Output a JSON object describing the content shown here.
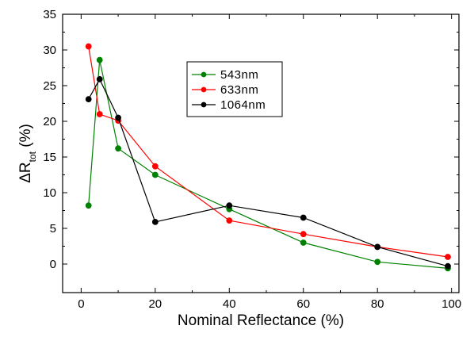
{
  "chart_data": {
    "type": "line",
    "xlabel": "Nominal Reflectance (%)",
    "ylabel": {
      "prefix": "ΔR",
      "subscript": "tot",
      "suffix": " (%)"
    },
    "xlim": [
      -5,
      102
    ],
    "ylim": [
      -4,
      35
    ],
    "xticks": [
      0,
      20,
      40,
      60,
      80,
      100
    ],
    "yticks": [
      0,
      5,
      10,
      15,
      20,
      25,
      30,
      35
    ],
    "grid": false,
    "legend_position": "top-center",
    "series": [
      {
        "name": "543nm",
        "color": "#008000",
        "points": [
          [
            2,
            8.2
          ],
          [
            5,
            28.6
          ],
          [
            10,
            16.2
          ],
          [
            20,
            12.5
          ],
          [
            40,
            7.7
          ],
          [
            60,
            3.0
          ],
          [
            80,
            0.3
          ],
          [
            99,
            -0.6
          ]
        ]
      },
      {
        "name": "633nm",
        "color": "#ff0000",
        "points": [
          [
            2,
            30.5
          ],
          [
            5,
            21.0
          ],
          [
            10,
            20.1
          ],
          [
            20,
            13.7
          ],
          [
            40,
            6.1
          ],
          [
            60,
            4.2
          ],
          [
            80,
            2.4
          ],
          [
            99,
            1.0
          ]
        ]
      },
      {
        "name": "1064nm",
        "color": "#000000",
        "points": [
          [
            2,
            23.1
          ],
          [
            5,
            25.9
          ],
          [
            10,
            20.5
          ],
          [
            20,
            5.9
          ],
          [
            40,
            8.2
          ],
          [
            60,
            6.5
          ],
          [
            80,
            2.4
          ],
          [
            99,
            -0.3
          ]
        ]
      }
    ]
  }
}
